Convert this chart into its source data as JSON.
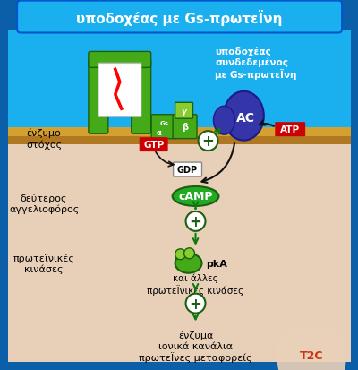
{
  "title": "υποδοχέας με Gs-πρωτεϊνη",
  "bg_outer": "#0a5fa8",
  "bg_header": "#1ab0f0",
  "bg_body": "#e8d0b8",
  "membrane_gold": "#d4a030",
  "membrane_brown": "#b07820",
  "text_white": "#ffffff",
  "text_black": "#000000",
  "green_dark": "#1a6010",
  "green_med": "#44aa18",
  "green_light": "#88cc30",
  "ac_color": "#3535aa",
  "ac_edge": "#1a1a88",
  "red_bg": "#cc0000",
  "camp_green": "#22aa22",
  "arrow_green": "#117711",
  "arrow_black": "#111111",
  "label_title": "υποδοχέας με Gs-πρωτεΪνη",
  "label_receptor_top": "υποδοχέας\nσυνδεδεμένος\nμε Gs-πρωτεΪνη",
  "label_enzumo": "ένζυμο\nστόχος",
  "label_deuteros": "δεύτερος\nαγγελιοφόρος",
  "label_proteines": "πρωτεϊνικές\nκινάσες",
  "label_gtp": "GTP",
  "label_gdp": "GDP",
  "label_atp": "ATP",
  "label_ac": "AC",
  "label_gs": "Gs",
  "label_alpha": "α",
  "label_beta": "β",
  "label_gamma": "γ",
  "label_camp": "cAMP",
  "label_pka": "pkA",
  "label_kai": "και άλλες\nπρωτεΪνικές κινάσες",
  "label_final": "ένζυμα\nιονικά κανάλια\nπρωτεΪνες μεταφορείς",
  "watermark": "T2C"
}
